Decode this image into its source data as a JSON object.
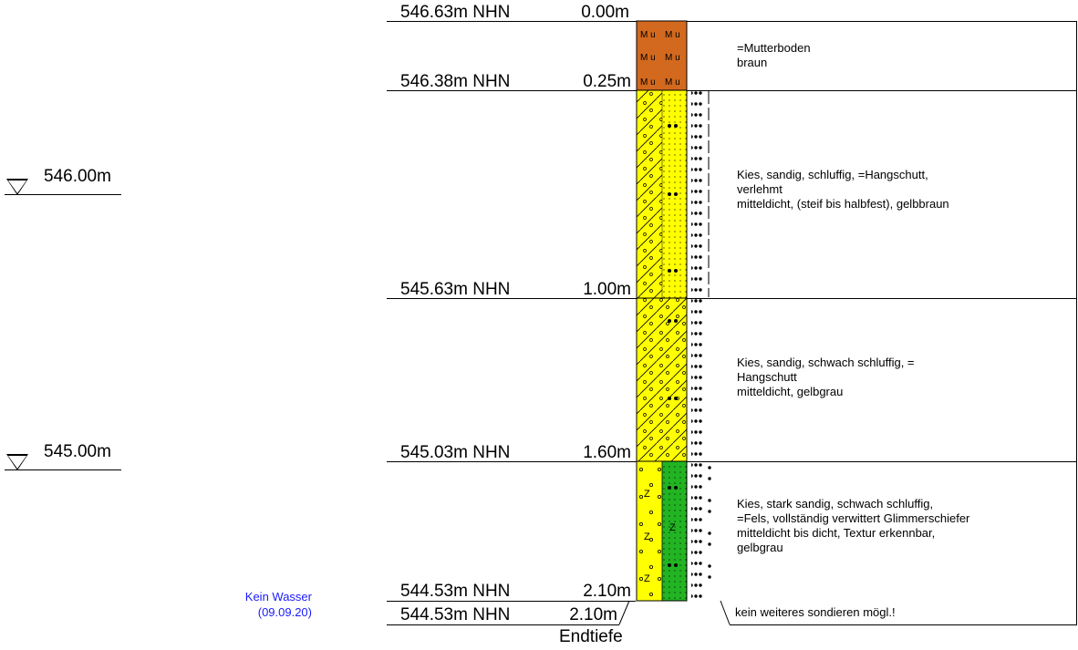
{
  "top": {
    "elevation": "546.63m NHN",
    "depth": "0.00m"
  },
  "layers": [
    {
      "code": "Mu",
      "bottom_elevation": "546.38m NHN",
      "bottom_depth": "0.25m",
      "description": "=Mutterboden\nbraun",
      "color": "#d2691e"
    },
    {
      "code": "G,s,u",
      "bottom_elevation": "545.63m NHN",
      "bottom_depth": "1.00m",
      "description": "Kies, sandig, schluffig, =Hangschutt,\nverlehmt\nmitteldicht, (steif bis halbfest), gelbbraun",
      "color": "#ffff00"
    },
    {
      "code": "G,s,u'",
      "bottom_elevation": "545.03m NHN",
      "bottom_depth": "1.60m",
      "description": "Kies, sandig, schwach schluffig, =\nHangschutt\nmitteldicht, gelbgrau",
      "color": "#ffff00"
    },
    {
      "code": "G,s*,u'",
      "bottom_elevation": "544.53m NHN",
      "bottom_depth": "2.10m",
      "description": "Kies, stark sandig, schwach schluffig,\n=Fels, vollständig verwittert Glimmerschiefer\nmitteldicht bis dicht, Textur erkennbar,\ngelbgrau",
      "color": "#ffff00",
      "color2": "#22b422"
    }
  ],
  "end": {
    "elevation": "544.53m NHN",
    "depth": "2.10m",
    "label": "Endtiefe",
    "note": "kein weiteres sondieren mögl.!"
  },
  "references": [
    {
      "label": "546.00m"
    },
    {
      "label": "545.00m"
    }
  ],
  "water": {
    "line1": "Kein Wasser",
    "line2": "(09.09.20)"
  }
}
